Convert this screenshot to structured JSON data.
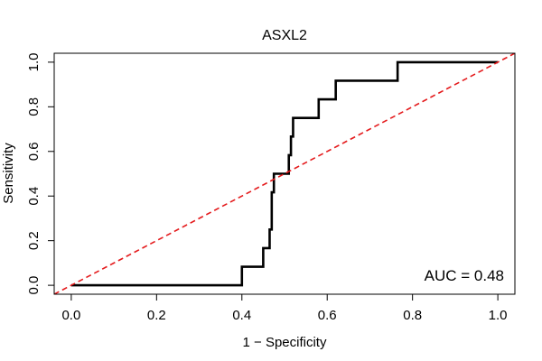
{
  "chart_data": {
    "type": "line",
    "title": "ASXL2",
    "xlabel": "1 − Specificity",
    "ylabel": "Sensitivity",
    "xlim": [
      -0.04,
      1.04
    ],
    "ylim": [
      -0.04,
      1.04
    ],
    "x_ticks": [
      0.0,
      0.2,
      0.4,
      0.6,
      0.8,
      1.0
    ],
    "x_tick_labels": [
      "0.0",
      "0.2",
      "0.4",
      "0.6",
      "0.8",
      "1.0"
    ],
    "y_ticks": [
      0.0,
      0.2,
      0.4,
      0.6,
      0.8,
      1.0
    ],
    "y_tick_labels": [
      "0.0",
      "0.2",
      "0.4",
      "0.6",
      "0.8",
      "1.0"
    ],
    "annotation": "AUC = 0.48",
    "grid": false,
    "series": [
      {
        "color": "#000000",
        "style": "solid",
        "x": [
          0.0,
          0.4,
          0.4,
          0.45,
          0.45,
          0.465,
          0.465,
          0.47,
          0.47,
          0.475,
          0.475,
          0.485,
          0.485,
          0.51,
          0.51,
          0.515,
          0.515,
          0.52,
          0.52,
          0.58,
          0.58,
          0.62,
          0.62,
          0.765,
          0.765,
          1.0
        ],
        "y": [
          0.0,
          0.0,
          0.0833,
          0.0833,
          0.1667,
          0.1667,
          0.25,
          0.25,
          0.4167,
          0.4167,
          0.5,
          0.5,
          0.5,
          0.5,
          0.5833,
          0.5833,
          0.6667,
          0.6667,
          0.75,
          0.75,
          0.8333,
          0.8333,
          0.9167,
          0.9167,
          1.0,
          1.0
        ]
      },
      {
        "color": "#e41a1c",
        "style": "dashed",
        "x": [
          -0.04,
          1.04
        ],
        "y": [
          -0.04,
          1.04
        ]
      }
    ]
  }
}
